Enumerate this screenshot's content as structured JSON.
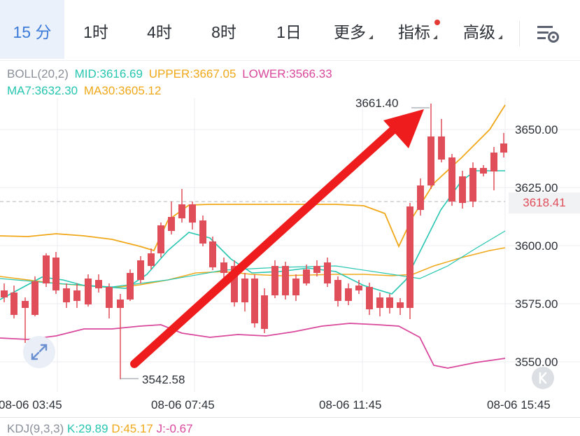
{
  "tabs": [
    {
      "label": "15 分",
      "active": true
    },
    {
      "label": "1时"
    },
    {
      "label": "4时"
    },
    {
      "label": "8时"
    },
    {
      "label": "1日"
    },
    {
      "label": "更多"
    },
    {
      "label": "指标"
    },
    {
      "label": "高级"
    }
  ],
  "boll": {
    "name": "BOLL(20,2)",
    "mid": "MID:3616.69",
    "upper": "UPPER:3667.05",
    "lower": "LOWER:3566.33"
  },
  "ma": {
    "ma7": "MA7:3632.30",
    "ma30": "MA30:3605.12"
  },
  "price_axis": [
    "3650.00",
    "3625.00",
    "3600.00",
    "3575.00",
    "3550.00"
  ],
  "time_axis": [
    "08-06 03:45",
    "08-06 07:45",
    "08-06 11:45",
    "08-06 15:45"
  ],
  "last_price": "3618.41",
  "annotations": {
    "high": "3661.40",
    "low": "3542.58"
  },
  "kdj": {
    "name": "KDJ(9,3,3)",
    "k": "K:29.89",
    "d": "D:45.17",
    "j": "J:-0.67"
  },
  "colors": {
    "up": "#1fa35b",
    "down": "#e04e5a",
    "mid": "#26c6b0",
    "upper": "#f0a81a",
    "lower": "#d9489c",
    "accent": "#3d7bd8",
    "arrow": "#ee1c1c"
  },
  "icons": {
    "settings": "chart-settings-icon",
    "expand": "expand-icon",
    "k": "k-line-icon"
  }
}
